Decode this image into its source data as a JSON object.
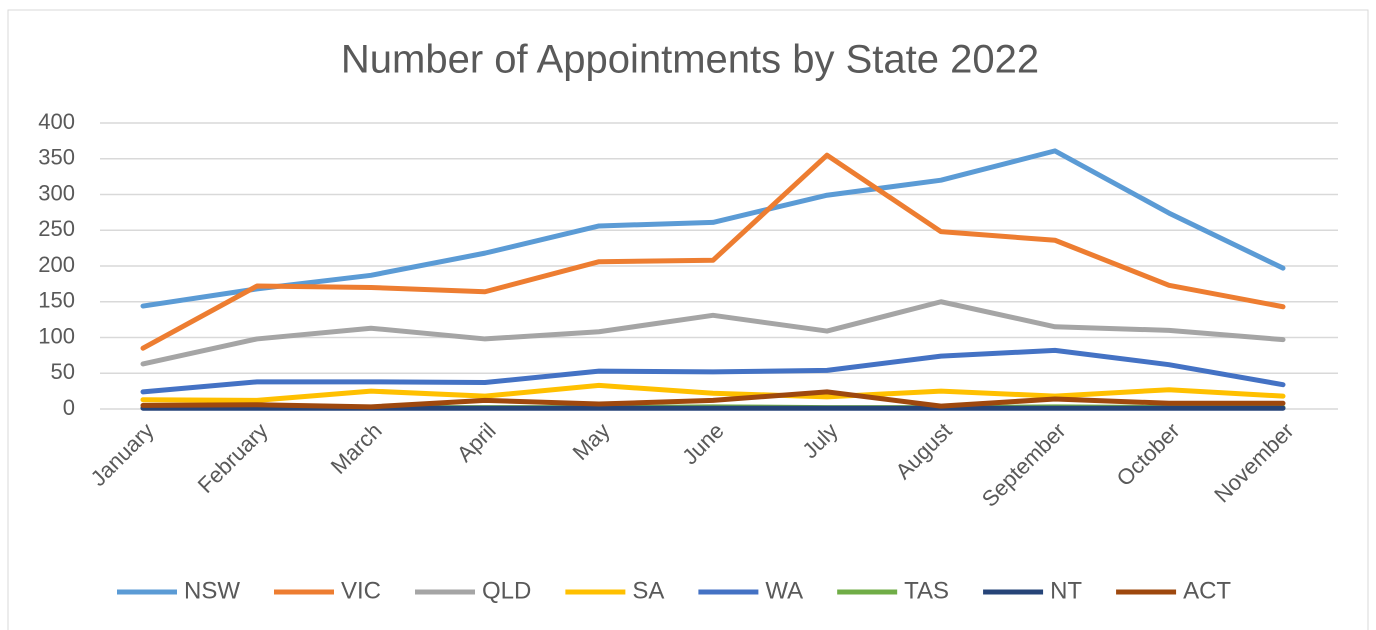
{
  "chart_data": {
    "type": "line",
    "title": "Number of Appointments by State 2022",
    "categories": [
      "January",
      "February",
      "March",
      "April",
      "May",
      "June",
      "July",
      "August",
      "September",
      "October",
      "November"
    ],
    "series": [
      {
        "name": "NSW",
        "color": "#5b9bd5",
        "values": [
          144,
          168,
          187,
          218,
          256,
          261,
          299,
          320,
          361,
          274,
          197
        ]
      },
      {
        "name": "VIC",
        "color": "#ed7d31",
        "values": [
          85,
          172,
          170,
          164,
          206,
          208,
          355,
          248,
          236,
          173,
          143
        ]
      },
      {
        "name": "QLD",
        "color": "#a5a5a5",
        "values": [
          63,
          98,
          113,
          98,
          108,
          131,
          109,
          150,
          115,
          110,
          97
        ]
      },
      {
        "name": "SA",
        "color": "#ffc000",
        "values": [
          13,
          12,
          25,
          18,
          33,
          22,
          17,
          25,
          18,
          27,
          18
        ]
      },
      {
        "name": "WA",
        "color": "#4472c4",
        "values": [
          24,
          38,
          38,
          37,
          53,
          52,
          54,
          74,
          82,
          62,
          34
        ]
      },
      {
        "name": "TAS",
        "color": "#70ad47",
        "values": [
          2,
          3,
          2,
          2,
          2,
          3,
          2,
          2,
          3,
          2,
          2
        ]
      },
      {
        "name": "NT",
        "color": "#264478",
        "values": [
          1,
          1,
          1,
          1,
          1,
          1,
          1,
          1,
          1,
          1,
          1
        ]
      },
      {
        "name": "ACT",
        "color": "#9e480e",
        "values": [
          5,
          6,
          3,
          12,
          7,
          12,
          24,
          4,
          14,
          8,
          8
        ]
      }
    ],
    "ylim": [
      0,
      400
    ],
    "yticks": [
      0,
      50,
      100,
      150,
      200,
      250,
      300,
      350,
      400
    ],
    "grid": true,
    "legend": "bottom"
  }
}
